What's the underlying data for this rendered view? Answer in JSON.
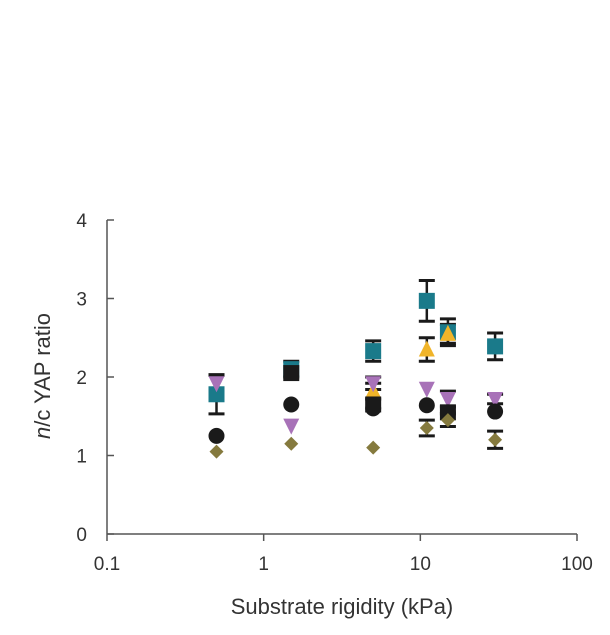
{
  "chart_data": {
    "type": "scatter",
    "xscale": "log",
    "xlim": [
      0.1,
      100
    ],
    "ylim": [
      0,
      4
    ],
    "xticks": [
      0.1,
      1,
      10,
      100
    ],
    "xtick_labels": [
      "0.1",
      "1",
      "10",
      "100"
    ],
    "yticks": [
      0,
      1,
      2,
      3,
      4
    ],
    "ytick_labels": [
      "0",
      "1",
      "2",
      "3",
      "4"
    ],
    "xlabel": "Substrate rigidity (kPa)",
    "ylabel_italic": "n",
    "ylabel_rest": "/c YAP ratio",
    "grid": false,
    "series": [
      {
        "marker": "square",
        "color": "#1a7a8a",
        "x": [
          0.5,
          1.5,
          5,
          11,
          15,
          30
        ],
        "y": [
          1.78,
          2.1,
          2.33,
          2.97,
          2.57,
          2.39
        ],
        "err": [
          0.25,
          0.1,
          0.13,
          0.26,
          0.17,
          0.17
        ]
      },
      {
        "marker": "triangle-up",
        "color": "#f0b429",
        "x": [
          5,
          11,
          15
        ],
        "y": [
          1.82,
          2.35,
          2.55
        ],
        "err": [
          0.1,
          0.15,
          0.12
        ]
      },
      {
        "marker": "triangle-down",
        "color": "#a872b8",
        "x": [
          0.5,
          1.5,
          5,
          11,
          15,
          30
        ],
        "y": [
          1.92,
          1.38,
          1.92,
          1.85,
          1.72,
          1.72
        ],
        "err": [
          0.1,
          0.0,
          0.08,
          0.0,
          0.1,
          0.06
        ]
      },
      {
        "marker": "circle",
        "color": "#1a1a1a",
        "x": [
          0.5,
          1.5,
          5,
          11,
          15,
          30
        ],
        "y": [
          1.25,
          1.65,
          1.6,
          1.64,
          1.55,
          1.56
        ],
        "err": [
          0.0,
          0.0,
          0.0,
          0.0,
          0.0,
          0.0
        ]
      },
      {
        "marker": "square",
        "color": "#1a1a1a",
        "x": [
          1.5,
          5,
          15
        ],
        "y": [
          2.05,
          1.65,
          1.55
        ],
        "err": [
          0.0,
          0.0,
          0.0
        ]
      },
      {
        "marker": "diamond",
        "color": "#857a3e",
        "x": [
          0.5,
          1.5,
          5,
          11,
          15,
          30
        ],
        "y": [
          1.05,
          1.15,
          1.1,
          1.35,
          1.45,
          1.2
        ],
        "err": [
          0.0,
          0.0,
          0.0,
          0.1,
          0.08,
          0.11
        ]
      }
    ]
  }
}
